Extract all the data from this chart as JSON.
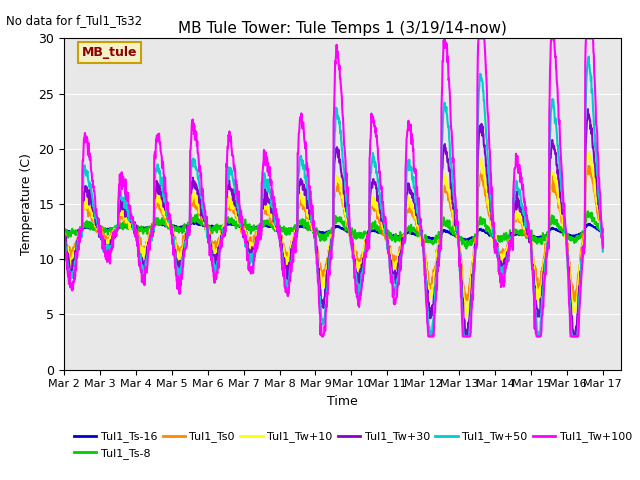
{
  "title": "MB Tule Tower: Tule Temps 1 (3/19/14-now)",
  "note": "No data for f_Tul1_Ts32",
  "ylabel": "Temperature (C)",
  "xlabel": "Time",
  "xlim": [
    0,
    15.5
  ],
  "ylim": [
    0,
    30
  ],
  "yticks": [
    0,
    5,
    10,
    15,
    20,
    25,
    30
  ],
  "xtick_labels": [
    "Mar 2",
    "Mar 3",
    "Mar 4",
    "Mar 5",
    "Mar 6",
    "Mar 7",
    "Mar 8",
    "Mar 9",
    "Mar 10",
    "Mar 11",
    "Mar 12",
    "Mar 13",
    "Mar 14",
    "Mar 15",
    "Mar 16",
    "Mar 17"
  ],
  "xtick_positions": [
    0,
    1,
    2,
    3,
    4,
    5,
    6,
    7,
    8,
    9,
    10,
    11,
    12,
    13,
    14,
    15
  ],
  "bg_color": "#e8e8e8",
  "fig_color": "#ffffff",
  "legend_box_color": "#f5f0c8",
  "legend_box_edge": "#c8a000",
  "legend_text_color": "#8b0000",
  "series": [
    {
      "label": "Tul1_Ts-16",
      "color": "#0000cc",
      "lw": 1.5
    },
    {
      "label": "Tul1_Ts-8",
      "color": "#00cc00",
      "lw": 1.5
    },
    {
      "label": "Tul1_Ts0",
      "color": "#ff8800",
      "lw": 1.5
    },
    {
      "label": "Tul1_Tw+10",
      "color": "#ffff00",
      "lw": 1.5
    },
    {
      "label": "Tul1_Tw+30",
      "color": "#8800cc",
      "lw": 1.5
    },
    {
      "label": "Tul1_Tw+50",
      "color": "#00cccc",
      "lw": 1.5
    },
    {
      "label": "Tul1_Tw+100",
      "color": "#ff00ff",
      "lw": 1.5
    }
  ]
}
